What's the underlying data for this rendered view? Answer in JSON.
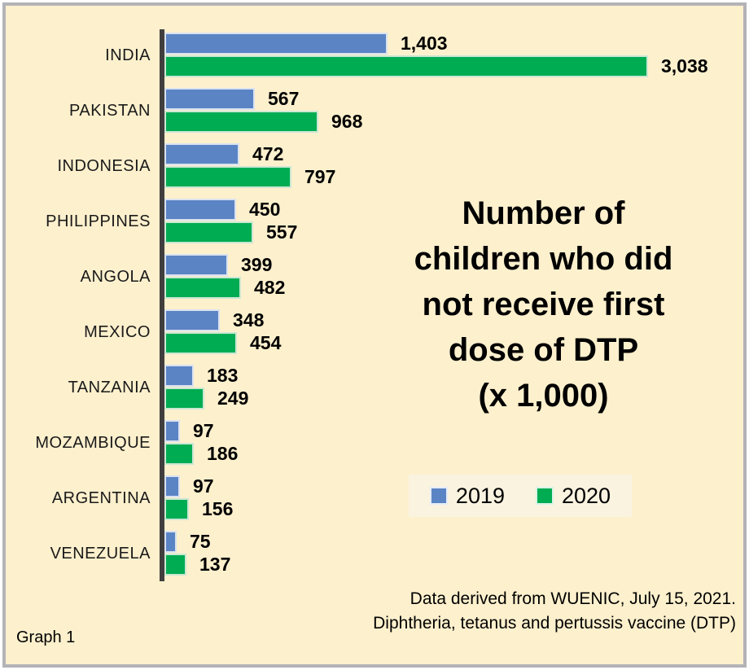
{
  "chart_data": {
    "type": "bar",
    "orientation": "horizontal",
    "title": "Number of children who did not receive first dose of DTP (x 1,000)",
    "title_lines": [
      "Number of",
      "children who did",
      "not receive first",
      "dose of DTP",
      "(x 1,000)"
    ],
    "categories": [
      "INDIA",
      "PAKISTAN",
      "INDONESIA",
      "PHILIPPINES",
      "ANGOLA",
      "MEXICO",
      "TANZANIA",
      "MOZAMBIQUE",
      "ARGENTINA",
      "VENEZUELA"
    ],
    "series": [
      {
        "name": "2019",
        "color": "#5B84C4",
        "values": [
          1403,
          567,
          472,
          450,
          399,
          348,
          183,
          97,
          97,
          75
        ],
        "labels": [
          "1,403",
          "567",
          "472",
          "450",
          "399",
          "348",
          "183",
          "97",
          "97",
          "75"
        ]
      },
      {
        "name": "2020",
        "color": "#00AC52",
        "values": [
          3038,
          968,
          797,
          557,
          482,
          454,
          249,
          186,
          156,
          137
        ],
        "labels": [
          "3,038",
          "968",
          "797",
          "557",
          "482",
          "454",
          "249",
          "186",
          "156",
          "137"
        ]
      }
    ],
    "value_unit": "x 1,000 children",
    "xlim": [
      0,
      3100
    ],
    "grid": false,
    "legend_position": "center-right",
    "legend_entries": [
      "2019",
      "2020"
    ],
    "source_lines": [
      "Data derived from WUENIC, July 15, 2021.",
      "Diphtheria, tetanus and pertussis vaccine (DTP)"
    ],
    "caption": "Graph 1"
  },
  "colors": {
    "background": "#FDF0CD",
    "frame_border": "#B3B3B7",
    "bar_2019": "#5B84C4",
    "bar_2020": "#00AC52",
    "axis_line": "#413F3E",
    "legend_background": "#FAF3E0",
    "text": "#000000"
  }
}
